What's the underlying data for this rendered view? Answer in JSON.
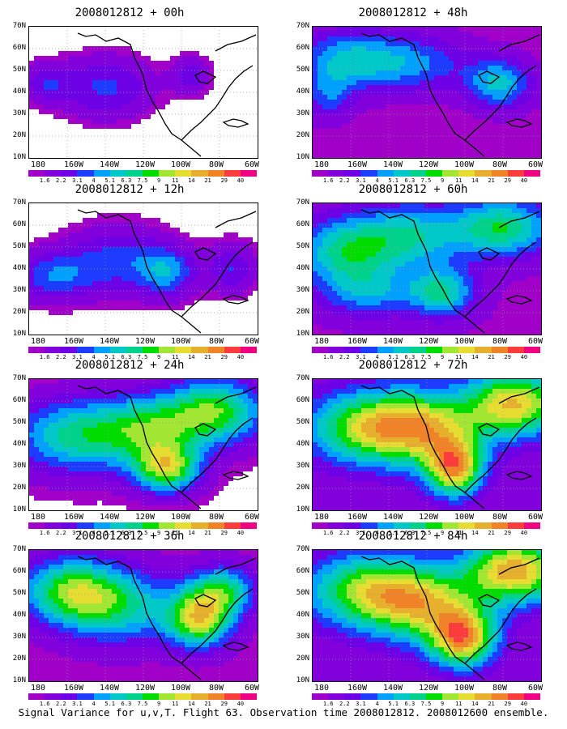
{
  "panels": [
    {
      "title": "2008012812 + 00h",
      "level": 0
    },
    {
      "title": "2008012812 + 48h",
      "level": 3
    },
    {
      "title": "2008012812 + 12h",
      "level": 1
    },
    {
      "title": "2008012812 + 60h",
      "level": 4
    },
    {
      "title": "2008012812 + 24h",
      "level": 2
    },
    {
      "title": "2008012812 + 72h",
      "level": 5
    },
    {
      "title": "2008012812 + 36h",
      "level": 3
    },
    {
      "title": "2008012812 + 84h",
      "level": 5
    }
  ],
  "latitude_labels": [
    "70N",
    "60N",
    "50N",
    "40N",
    "30N",
    "20N",
    "10N"
  ],
  "longitude_labels": [
    "180",
    "160W",
    "140W",
    "120W",
    "100W",
    "80W",
    "60W"
  ],
  "colorbar": {
    "labels": [
      "1.6",
      "2.2",
      "3.1",
      "4",
      "5.1",
      "6.3",
      "7.5",
      "9",
      "11",
      "14",
      "21",
      "29",
      "40"
    ],
    "colors": [
      "#a000c8",
      "#8200dc",
      "#6e00e6",
      "#1e3cff",
      "#00a0ff",
      "#00c8c8",
      "#00d28c",
      "#00dc00",
      "#a0e632",
      "#e6dc32",
      "#e6af2d",
      "#f08228",
      "#fa3c3c",
      "#f00082"
    ]
  },
  "caption": "Signal Variance for u,v,T. Flight 63. Observation time 2008012812. 2008012600 ensemble."
}
